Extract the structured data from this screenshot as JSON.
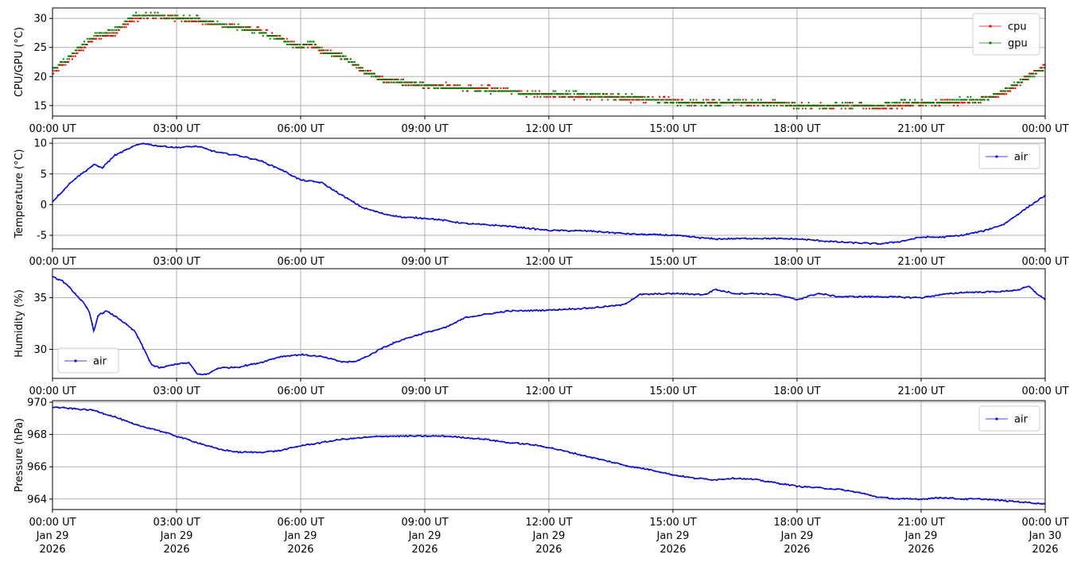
{
  "x_ticks": [
    "00:00 UT",
    "03:00 UT",
    "06:00 UT",
    "09:00 UT",
    "12:00 UT",
    "15:00 UT",
    "18:00 UT",
    "21:00 UT",
    "00:00 UT"
  ],
  "x_ticks_bottom_dates": [
    [
      "Jan 29",
      "2026"
    ],
    [
      "Jan 29",
      "2026"
    ],
    [
      "Jan 29",
      "2026"
    ],
    [
      "Jan 29",
      "2026"
    ],
    [
      "Jan 29",
      "2026"
    ],
    [
      "Jan 29",
      "2026"
    ],
    [
      "Jan 29",
      "2026"
    ],
    [
      "Jan 29",
      "2026"
    ],
    [
      "Jan 30",
      "2026"
    ]
  ],
  "chart_data": [
    {
      "type": "scatter",
      "ylabel": "CPU/GPU (°C)",
      "xlim": [
        0,
        24
      ],
      "ylim": [
        13.2,
        31.8
      ],
      "yticks": [
        15,
        20,
        25,
        30
      ],
      "grid": true,
      "legend_placement": "top-right",
      "quantization_step": 0.5,
      "series": [
        {
          "name": "cpu",
          "color": "#ff0000",
          "x": [
            0,
            0.5,
            1,
            1.5,
            2,
            2.5,
            3,
            3.5,
            4,
            4.5,
            5,
            5.5,
            6,
            6.25,
            6.5,
            7,
            7.5,
            8,
            8.5,
            9,
            9.5,
            10,
            10.5,
            11,
            11.5,
            12,
            12.5,
            13,
            13.5,
            14,
            14.5,
            15,
            15.5,
            16,
            16.5,
            17,
            17.5,
            18,
            18.5,
            19,
            19.5,
            20,
            20.5,
            21,
            21.5,
            22,
            22.5,
            23,
            23.5,
            24
          ],
          "y": [
            20.5,
            23.5,
            26.5,
            27.5,
            30,
            30.5,
            30,
            29.5,
            29,
            28.5,
            28,
            26.5,
            25,
            25.5,
            24.5,
            23.5,
            21,
            19.5,
            19,
            18.5,
            18.5,
            18,
            18,
            17.5,
            17,
            17,
            16.5,
            16.5,
            16.5,
            16,
            16,
            16,
            15.5,
            15.5,
            15.5,
            15.5,
            15.5,
            15,
            15,
            15,
            15,
            14.5,
            15,
            15.5,
            15.5,
            15.5,
            16,
            17,
            19.5,
            22
          ]
        },
        {
          "name": "gpu",
          "color": "#008000",
          "x": [
            0,
            0.5,
            1,
            1.5,
            2,
            2.5,
            3,
            3.5,
            4,
            4.5,
            5,
            5.5,
            6,
            6.25,
            6.5,
            7,
            7.5,
            8,
            8.5,
            9,
            9.5,
            10,
            10.5,
            11,
            11.5,
            12,
            12.5,
            13,
            13.5,
            14,
            14.5,
            15,
            15.5,
            16,
            16.5,
            17,
            17.5,
            18,
            18.5,
            19,
            19.5,
            20,
            20.5,
            21,
            21.5,
            22,
            22.5,
            23,
            23.5,
            24
          ],
          "y": [
            21,
            24,
            27,
            28,
            30.5,
            30.5,
            30,
            30,
            29,
            28.5,
            27.5,
            26.5,
            25,
            26,
            24.5,
            23.5,
            21,
            19.5,
            19,
            18.5,
            18,
            18,
            17.5,
            17.5,
            17,
            17,
            17,
            17,
            16.5,
            16.5,
            16,
            15.5,
            15.5,
            15.5,
            15.5,
            15.5,
            15.5,
            15,
            15,
            15,
            15,
            15,
            15.5,
            15.5,
            15.5,
            16,
            16,
            17.5,
            19.5,
            21.5
          ]
        }
      ]
    },
    {
      "type": "line",
      "ylabel": "Temperature (°C)",
      "xlim": [
        0,
        24
      ],
      "ylim": [
        -7.2,
        10.8
      ],
      "yticks": [
        -5,
        0,
        5,
        10
      ],
      "grid": true,
      "legend_placement": "top-right",
      "series": [
        {
          "name": "air",
          "color": "#0000ff",
          "x": [
            0,
            0.5,
            1,
            1.2,
            1.5,
            2,
            2.2,
            2.5,
            3,
            3.5,
            4,
            4.5,
            5,
            5.5,
            6,
            6.5,
            7,
            7.5,
            8,
            8.5,
            9,
            9.5,
            10,
            11,
            12,
            13,
            14,
            15,
            16,
            17,
            18,
            19,
            20,
            20.5,
            21,
            21.5,
            22,
            22.5,
            23,
            23.5,
            24
          ],
          "y": [
            0.5,
            4,
            6.5,
            6,
            8,
            9.6,
            10,
            9.6,
            9.3,
            9.5,
            8.5,
            8,
            7.2,
            5.8,
            4,
            3.6,
            1.5,
            -0.5,
            -1.5,
            -2.1,
            -2.2,
            -2.6,
            -3.1,
            -3.5,
            -4.2,
            -4.3,
            -4.8,
            -5,
            -5.6,
            -5.5,
            -5.6,
            -6.1,
            -6.4,
            -6,
            -5.3,
            -5.3,
            -5,
            -4.3,
            -3.2,
            -0.8,
            1.5
          ]
        }
      ]
    },
    {
      "type": "line",
      "ylabel": "Humidity (%)",
      "xlim": [
        0,
        24
      ],
      "ylim": [
        27.2,
        37.8
      ],
      "yticks": [
        30,
        35
      ],
      "grid": true,
      "legend_placement": "bottom-left",
      "series": [
        {
          "name": "air",
          "color": "#0000ff",
          "x": [
            0,
            0.25,
            0.5,
            0.75,
            0.9,
            1,
            1.1,
            1.3,
            1.6,
            2,
            2.4,
            2.6,
            3,
            3.3,
            3.5,
            3.75,
            4,
            4.5,
            5,
            5.5,
            6,
            6.5,
            7,
            7.3,
            7.6,
            8,
            8.5,
            9,
            9.5,
            10,
            10.5,
            11,
            12,
            13,
            13.8,
            14.2,
            15,
            15.8,
            16,
            16.5,
            17,
            17.5,
            18,
            18.5,
            19,
            20,
            21,
            21.5,
            22,
            23,
            23.4,
            23.6,
            23.8,
            24
          ],
          "y": [
            37,
            36.6,
            35.6,
            34.5,
            33.5,
            31.7,
            33.3,
            33.7,
            33,
            31.7,
            28.5,
            28.2,
            28.6,
            28.7,
            27.6,
            27.6,
            28.2,
            28.3,
            28.7,
            29.3,
            29.5,
            29.3,
            28.8,
            28.8,
            29.3,
            30.2,
            31,
            31.6,
            32.1,
            33.1,
            33.4,
            33.7,
            33.8,
            34,
            34.3,
            35.3,
            35.4,
            35.3,
            35.8,
            35.4,
            35.4,
            35.3,
            34.8,
            35.4,
            35.1,
            35.1,
            35,
            35.3,
            35.5,
            35.6,
            35.8,
            36.1,
            35.4,
            34.8
          ]
        }
      ]
    },
    {
      "type": "line",
      "ylabel": "Pressure (hPa)",
      "xlim": [
        0,
        24
      ],
      "ylim": [
        963.35,
        970.1
      ],
      "yticks": [
        964,
        966,
        968,
        970
      ],
      "grid": true,
      "legend_placement": "top-right",
      "series": [
        {
          "name": "air",
          "color": "#0000ff",
          "x": [
            0,
            0.5,
            1,
            1.5,
            2,
            2.5,
            3,
            3.5,
            4,
            4.5,
            5,
            5.5,
            6,
            6.5,
            7,
            7.5,
            8,
            8.5,
            9,
            9.5,
            10,
            10.5,
            11,
            11.5,
            12,
            12.5,
            13,
            13.5,
            14,
            14.5,
            15,
            15.5,
            16,
            16.5,
            17,
            17.5,
            18,
            18.5,
            19,
            19.5,
            20,
            20.5,
            21,
            21.5,
            22,
            22.5,
            23,
            23.5,
            24
          ],
          "y": [
            969.7,
            969.6,
            969.5,
            969.1,
            968.6,
            968.3,
            967.9,
            967.5,
            967.1,
            966.9,
            966.9,
            967,
            967.3,
            967.5,
            967.7,
            967.8,
            967.9,
            967.9,
            967.9,
            967.9,
            967.8,
            967.7,
            967.5,
            967.4,
            967.2,
            966.9,
            966.6,
            966.3,
            966,
            965.8,
            965.5,
            965.3,
            965.2,
            965.3,
            965.2,
            965,
            964.8,
            964.7,
            964.6,
            964.4,
            964.1,
            964,
            964,
            964.1,
            964,
            964,
            963.9,
            963.8,
            963.7
          ]
        }
      ]
    }
  ]
}
